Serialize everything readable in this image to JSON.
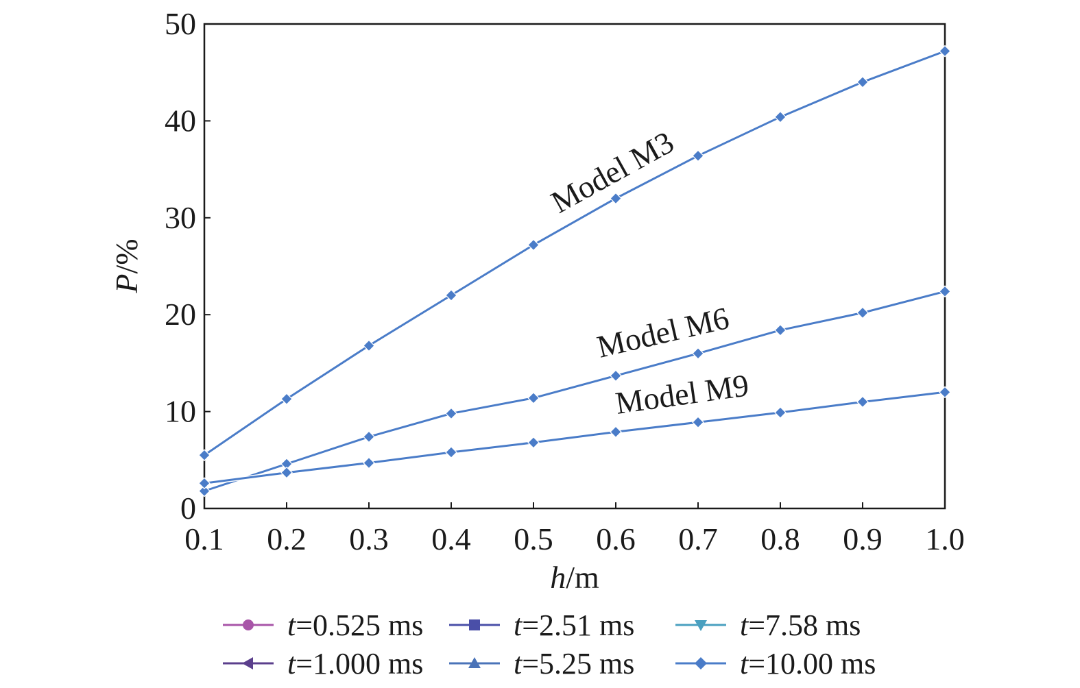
{
  "chart_data": {
    "type": "line",
    "xlabel": {
      "var": "h",
      "unit": "/m"
    },
    "ylabel": {
      "var": "P",
      "unit": "/%"
    },
    "xlim": [
      0.1,
      1.0
    ],
    "ylim": [
      0,
      50
    ],
    "x": [
      0.1,
      0.2,
      0.3,
      0.4,
      0.5,
      0.6,
      0.7,
      0.8,
      0.9,
      1.0
    ],
    "x_tick_labels": [
      "0.1",
      "0.2",
      "0.3",
      "0.4",
      "0.5",
      "0.6",
      "0.7",
      "0.8",
      "0.9",
      "1.0"
    ],
    "y_ticks": [
      0,
      10,
      20,
      30,
      40,
      50
    ],
    "y_tick_labels": [
      "0",
      "10",
      "20",
      "30",
      "40",
      "50"
    ],
    "grid": false,
    "legend_position": "bottom",
    "series": [
      {
        "name": "t=0.525 ms",
        "var": "t",
        "value": "=0.525 ms",
        "marker": "circle",
        "color": "#a855a8"
      },
      {
        "name": "t=1.000 ms",
        "var": "t",
        "value": "=1.000 ms",
        "marker": "triangle-left",
        "color": "#5b3f8c"
      },
      {
        "name": "t=2.51 ms",
        "var": "t",
        "value": "=2.51 ms",
        "marker": "square",
        "color": "#4a4fa8"
      },
      {
        "name": "t=5.25 ms",
        "var": "t",
        "value": "=5.25 ms",
        "marker": "triangle-up",
        "color": "#4a73b8"
      },
      {
        "name": "t=7.58 ms",
        "var": "t",
        "value": "=7.58 ms",
        "marker": "triangle-down",
        "color": "#4aa0c0"
      },
      {
        "name": "t=10.00 ms",
        "var": "t",
        "value": "=10.00 ms",
        "marker": "diamond",
        "color": "#4a7cc8"
      }
    ],
    "models": [
      {
        "label": "Model M3",
        "values": [
          5.5,
          11.3,
          16.8,
          22.0,
          27.2,
          32.0,
          36.4,
          40.4,
          44.0,
          47.2
        ]
      },
      {
        "label": "Model M6",
        "values": [
          1.8,
          4.6,
          7.4,
          9.8,
          11.4,
          13.7,
          16.0,
          18.4,
          20.2,
          22.4
        ]
      },
      {
        "label": "Model M9",
        "values": [
          2.6,
          3.7,
          4.7,
          5.8,
          6.8,
          7.9,
          8.9,
          9.9,
          11.0,
          12.0
        ]
      }
    ],
    "line_color": "#4a7cc8"
  }
}
